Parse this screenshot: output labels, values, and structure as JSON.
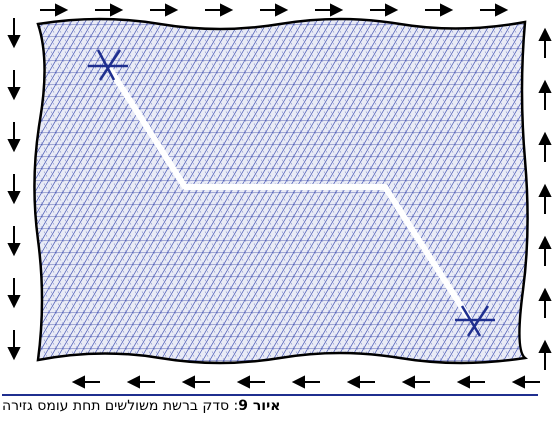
{
  "figure": {
    "label": "איור 9",
    "caption": ": סדק ברשת משולשים תחת עומס גזירה"
  }
}
